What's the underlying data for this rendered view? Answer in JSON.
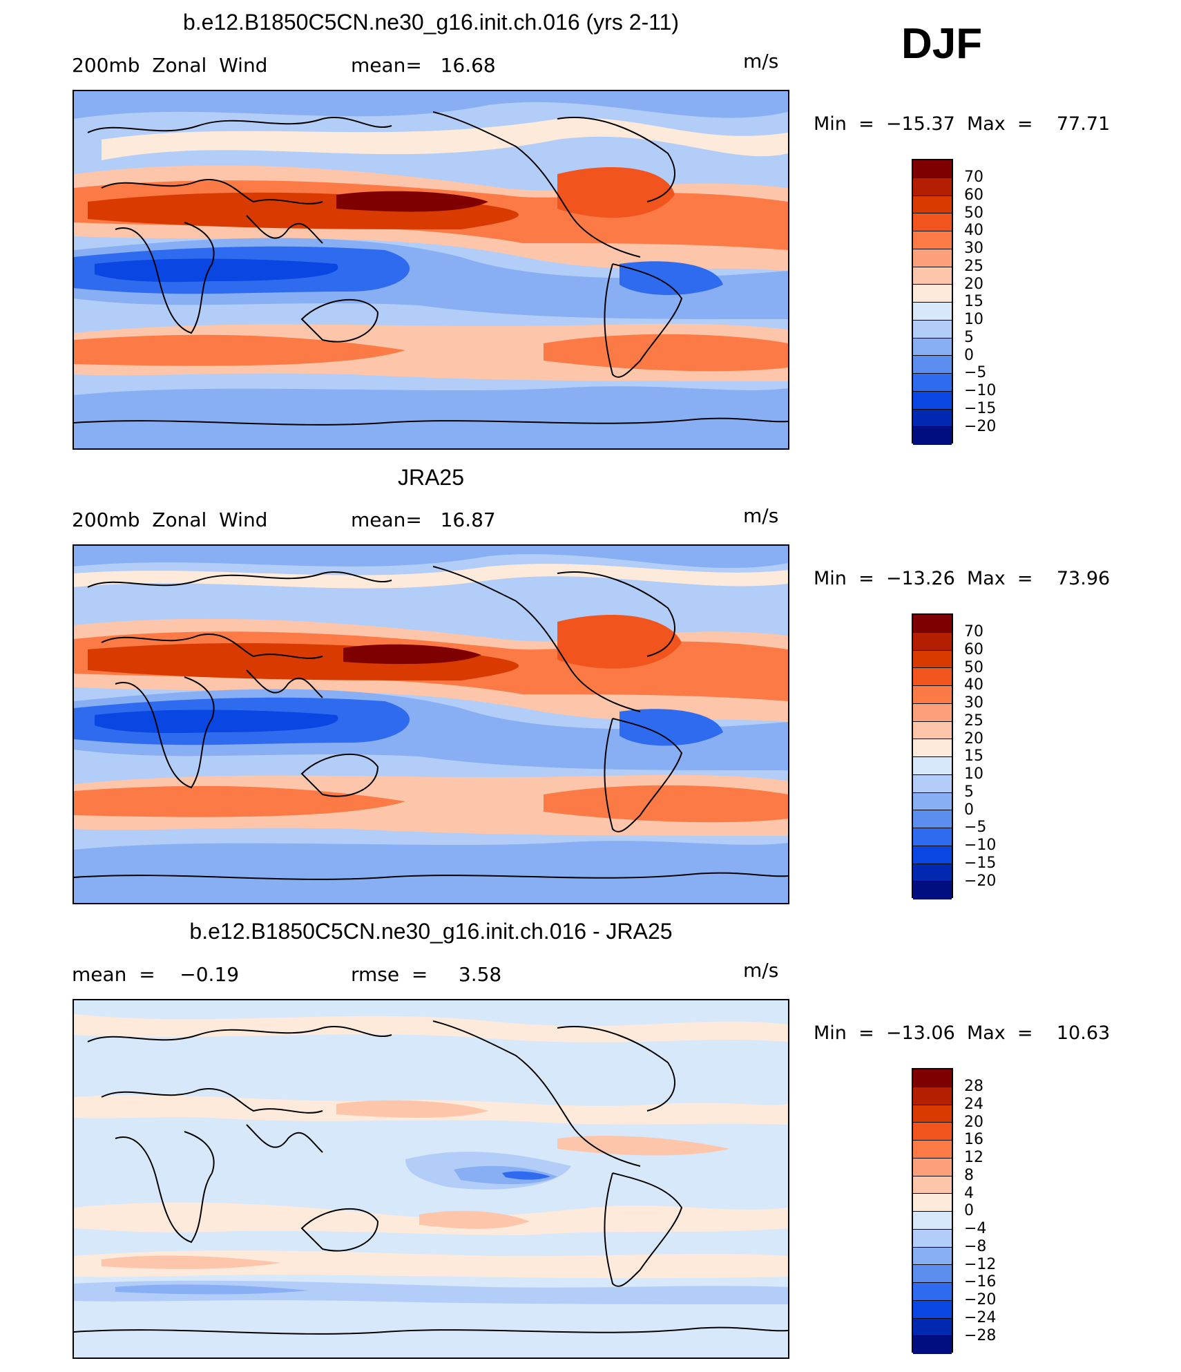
{
  "season": "DJF",
  "panels": [
    {
      "title": "b.e12.B1850C5CN.ne30_g16.init.ch.016 (yrs 2-11)",
      "left_label": "200mb  Zonal  Wind",
      "mid_label": "mean=   16.68",
      "units": "m/s",
      "minmax": "Min  =  −15.37  Max  =    77.71",
      "colorbar_labels": [
        "70",
        "60",
        "50",
        "40",
        "30",
        "25",
        "20",
        "15",
        "10",
        "5",
        "0",
        "−5",
        "−10",
        "−15",
        "−20"
      ]
    },
    {
      "title": "JRA25",
      "left_label": "200mb  Zonal  Wind",
      "mid_label": "mean=   16.87",
      "units": "m/s",
      "minmax": "Min  =  −13.26  Max  =    73.96",
      "colorbar_labels": [
        "70",
        "60",
        "50",
        "40",
        "30",
        "25",
        "20",
        "15",
        "10",
        "5",
        "0",
        "−5",
        "−10",
        "−15",
        "−20"
      ]
    },
    {
      "title": "b.e12.B1850C5CN.ne30_g16.init.ch.016 - JRA25",
      "left_label": "mean  =    −0.19",
      "mid_label": "rmse  =     3.58",
      "units": "m/s",
      "minmax": "Min  =  −13.06  Max  =    10.63",
      "colorbar_labels": [
        "28",
        "24",
        "20",
        "16",
        "12",
        "8",
        "4",
        "0",
        "−4",
        "−8",
        "−12",
        "−16",
        "−20",
        "−24",
        "−28"
      ]
    }
  ],
  "colors": {
    "scale": [
      "#7f0000",
      "#b31f00",
      "#d93a00",
      "#f2541d",
      "#fb7a45",
      "#fca07c",
      "#fdc6aa",
      "#feeadb",
      "#d8e8fb",
      "#b2cdf7",
      "#88aef3",
      "#5c8ef0",
      "#2f6bef",
      "#0a46e2",
      "#0028b0",
      "#000f80"
    ],
    "coast": "#000000"
  }
}
